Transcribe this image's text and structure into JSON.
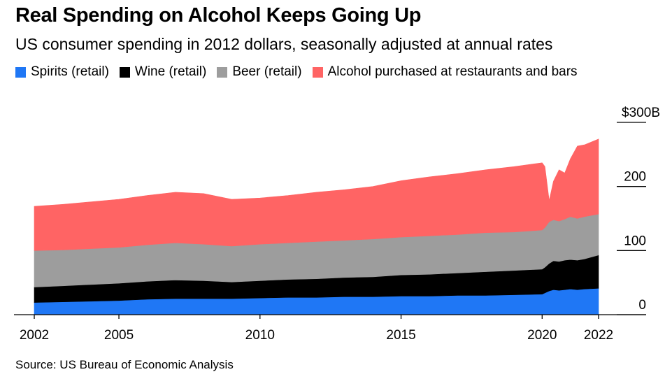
{
  "chart_data": {
    "type": "area",
    "stacked": true,
    "title": "Real Spending on Alcohol Keeps Going Up",
    "subtitle": "US consumer spending in 2012 dollars, seasonally adjusted at annual rates",
    "source": "Source: US Bureau of Economic Analysis",
    "xlabel": "",
    "ylabel": "",
    "xlim": [
      2002,
      2022
    ],
    "ylim": [
      0,
      300
    ],
    "x_ticks": [
      {
        "value": 2002,
        "label": "2002"
      },
      {
        "value": 2005,
        "label": "2005"
      },
      {
        "value": 2010,
        "label": "2010"
      },
      {
        "value": 2015,
        "label": "2015"
      },
      {
        "value": 2020,
        "label": "2020"
      },
      {
        "value": 2022,
        "label": "2022"
      }
    ],
    "y_ticks": [
      {
        "value": 0,
        "label": "0"
      },
      {
        "value": 100,
        "label": "100"
      },
      {
        "value": 200,
        "label": "200"
      },
      {
        "value": 300,
        "label": "$300B"
      }
    ],
    "legend_position": "top",
    "x": [
      2002,
      2003,
      2004,
      2005,
      2006,
      2007,
      2008,
      2009,
      2010,
      2011,
      2012,
      2013,
      2014,
      2015,
      2016,
      2017,
      2018,
      2019,
      2020.0,
      2020.1,
      2020.25,
      2020.4,
      2020.6,
      2020.8,
      2021,
      2021.25,
      2021.5,
      2022
    ],
    "series": [
      {
        "name": "Spirits (retail)",
        "color": "#1f77f5",
        "values": [
          19,
          20,
          21,
          22,
          24,
          25,
          25,
          25,
          26,
          27,
          27,
          28,
          28,
          29,
          29,
          30,
          30,
          31,
          32,
          34,
          37,
          39,
          38,
          39,
          40,
          39,
          40,
          41
        ]
      },
      {
        "name": "Wine (retail)",
        "color": "#000000",
        "values": [
          24,
          25,
          26,
          27,
          28,
          29,
          28,
          26,
          27,
          28,
          29,
          30,
          31,
          33,
          34,
          35,
          37,
          38,
          39,
          40,
          43,
          45,
          45,
          46,
          46,
          46,
          47,
          52
        ]
      },
      {
        "name": "Beer (retail)",
        "color": "#9d9d9d",
        "values": [
          57,
          56,
          56,
          56,
          57,
          58,
          57,
          56,
          57,
          57,
          58,
          58,
          59,
          59,
          60,
          60,
          61,
          60,
          61,
          62,
          65,
          64,
          63,
          64,
          67,
          65,
          66,
          64
        ]
      },
      {
        "name": "Alcohol purchased at restaurants and bars",
        "color": "#ff6464",
        "values": [
          69,
          71,
          73,
          75,
          77,
          79,
          79,
          73,
          72,
          74,
          77,
          79,
          82,
          88,
          92,
          95,
          98,
          102,
          105,
          95,
          33,
          60,
          80,
          72,
          90,
          113,
          112,
          117
        ]
      }
    ]
  }
}
